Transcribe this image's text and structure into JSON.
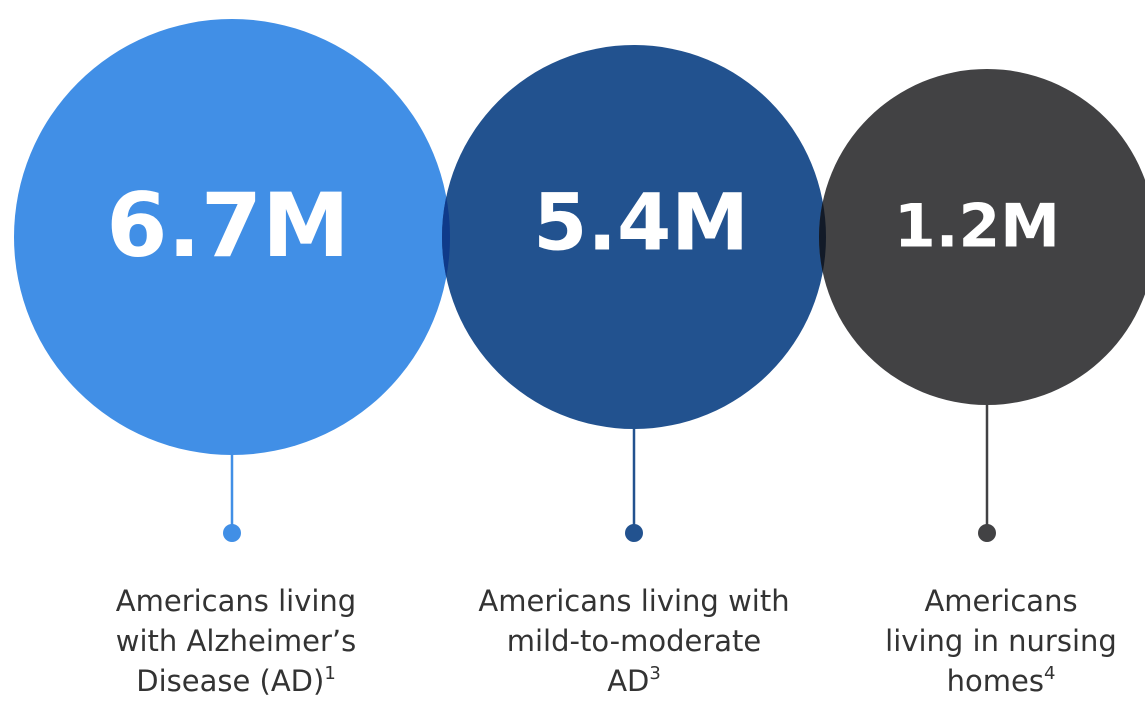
{
  "stats": [
    {
      "value": "6.7M",
      "label_lines": [
        "Americans living",
        "with Alzheimer’s",
        "Disease (AD)"
      ],
      "footnote": "1"
    },
    {
      "value": "5.4M",
      "label_lines": [
        "Americans living with",
        "mild-to-moderate",
        "AD"
      ],
      "footnote": "3"
    },
    {
      "value": "1.2M",
      "label_lines": [
        "Americans",
        "living in nursing",
        "homes"
      ],
      "footnote": "4"
    }
  ]
}
